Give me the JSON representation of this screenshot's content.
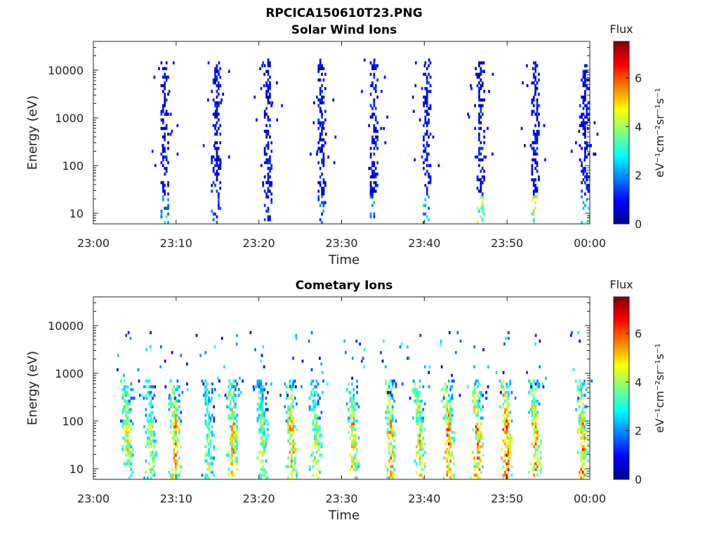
{
  "figure_title": "RPCICA150610T23.PNG",
  "chart_data": [
    {
      "type": "heatmap",
      "title": "Solar Wind Ions",
      "xlabel": "Time",
      "ylabel": "Energy (eV)",
      "x_ticks": [
        "23:00",
        "23:10",
        "23:20",
        "23:30",
        "23:40",
        "23:50",
        "00:00"
      ],
      "xlim_minutes": [
        0,
        60
      ],
      "y_scale": "log",
      "y_ticks": [
        "10",
        "100",
        "1000",
        "10000"
      ],
      "ylim": [
        6,
        40000
      ],
      "colorbar": {
        "label": "Flux",
        "units": "eV⁻¹cm⁻²sr⁻¹s⁻¹",
        "range": [
          0,
          7.5
        ],
        "ticks": [
          "0",
          "2",
          "4",
          "6"
        ]
      },
      "bursts": [
        {
          "t": 8.5,
          "emax": 15000,
          "low_flux": 2.5
        },
        {
          "t": 14.8,
          "emax": 15000,
          "low_flux": 1.8
        },
        {
          "t": 21.0,
          "emax": 15000,
          "low_flux": 1.5
        },
        {
          "t": 27.5,
          "emax": 15000,
          "low_flux": 2.0
        },
        {
          "t": 33.8,
          "emax": 15000,
          "low_flux": 2.2
        },
        {
          "t": 40.2,
          "emax": 15000,
          "low_flux": 2.5
        },
        {
          "t": 46.7,
          "emax": 15000,
          "low_flux": 4.5
        },
        {
          "t": 53.3,
          "emax": 15000,
          "low_flux": 4.8
        },
        {
          "t": 59.3,
          "emax": 12000,
          "low_flux": 3.5
        }
      ]
    },
    {
      "type": "heatmap",
      "title": "Cometary Ions",
      "xlabel": "Time",
      "ylabel": "Energy (eV)",
      "x_ticks": [
        "23:00",
        "23:10",
        "23:20",
        "23:30",
        "23:40",
        "23:50",
        "00:00"
      ],
      "xlim_minutes": [
        0,
        60
      ],
      "y_scale": "log",
      "y_ticks": [
        "10",
        "100",
        "1000",
        "10000"
      ],
      "ylim": [
        6,
        40000
      ],
      "colorbar": {
        "label": "Flux",
        "units": "eV⁻¹cm⁻²sr⁻¹s⁻¹",
        "range": [
          0,
          7.5
        ],
        "ticks": [
          "0",
          "2",
          "4",
          "6"
        ]
      },
      "bursts": [
        {
          "t": 4.0,
          "peak_flux": 5.5
        },
        {
          "t": 6.8,
          "peak_flux": 5.0
        },
        {
          "t": 9.8,
          "peak_flux": 6.2
        },
        {
          "t": 13.8,
          "peak_flux": 4.5
        },
        {
          "t": 16.8,
          "peak_flux": 6.0
        },
        {
          "t": 20.3,
          "peak_flux": 5.0
        },
        {
          "t": 23.8,
          "peak_flux": 6.3
        },
        {
          "t": 26.8,
          "peak_flux": 5.0
        },
        {
          "t": 31.3,
          "peak_flux": 6.0
        },
        {
          "t": 35.8,
          "peak_flux": 6.2
        },
        {
          "t": 39.3,
          "peak_flux": 6.0
        },
        {
          "t": 42.8,
          "peak_flux": 6.6
        },
        {
          "t": 46.3,
          "peak_flux": 6.6
        },
        {
          "t": 49.8,
          "peak_flux": 7.3
        },
        {
          "t": 53.3,
          "peak_flux": 6.5
        },
        {
          "t": 59.0,
          "peak_flux": 6.5
        }
      ]
    }
  ]
}
